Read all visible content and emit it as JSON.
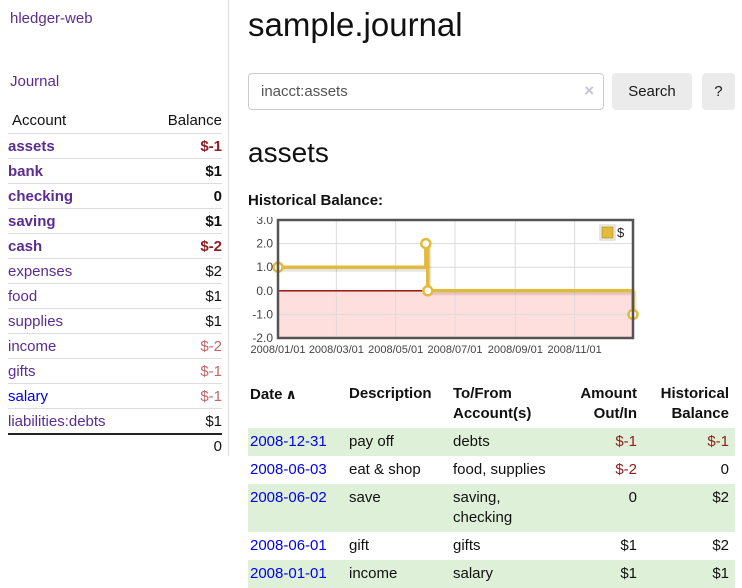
{
  "colors": {
    "purple_link": "#5b2d90",
    "blue_link": "#0000ee",
    "negative_dark": "#8f1d21",
    "negative_muted": "#c46666",
    "row_stripe_green": "#dff0d8",
    "chart_line_gold": "#e2bb3d",
    "chart_negative_fill": "#ffdede",
    "chart_zero_line": "#8b0000",
    "chart_border": "#545454"
  },
  "brand": {
    "title": "hledger-web"
  },
  "nav": {
    "journal": "Journal"
  },
  "sidebar": {
    "header": {
      "account": "Account",
      "balance": "Balance"
    },
    "accounts": [
      {
        "name": "assets",
        "balance": "$-1"
      },
      {
        "name": "bank",
        "balance": "$1"
      },
      {
        "name": "checking",
        "balance": "0"
      },
      {
        "name": "saving",
        "balance": "$1"
      },
      {
        "name": "cash",
        "balance": "$-2"
      },
      {
        "name": "expenses",
        "balance": "$2"
      },
      {
        "name": "food",
        "balance": "$1"
      },
      {
        "name": "supplies",
        "balance": "$1"
      },
      {
        "name": "income",
        "balance": "$-2"
      },
      {
        "name": "gifts",
        "balance": "$-1"
      },
      {
        "name": "salary",
        "balance": "$-1"
      },
      {
        "name": "liabilities:debts",
        "balance": "$1"
      }
    ],
    "total": "0"
  },
  "header": {
    "title": "sample.journal"
  },
  "search": {
    "value": "inacct:assets",
    "clear_icon": "×",
    "search_button": "Search",
    "help_button": "?"
  },
  "account_page": {
    "heading": "assets",
    "chart_title": "Historical Balance:"
  },
  "chart_data": {
    "type": "line",
    "subtype": "step-after",
    "title": "Historical Balance",
    "x_start": "2008-01-01",
    "x_end": "2008-12-31",
    "x_tick_labels": [
      "2008/01/01",
      "2008/03/01",
      "2008/05/01",
      "2008/07/01",
      "2008/09/01",
      "2008/11/01"
    ],
    "x_tick_dates": [
      "2008-01-01",
      "2008-03-01",
      "2008-05-01",
      "2008-07-01",
      "2008-09-01",
      "2008-11-01"
    ],
    "y_ticks": [
      "3.0",
      "2.0",
      "1.0",
      "0.0",
      "-1.0",
      "-2.0"
    ],
    "ylim": [
      -2,
      3
    ],
    "grid": true,
    "legend_position": "top-right",
    "series": [
      {
        "name": "$",
        "color": "#e2bb3d",
        "points": [
          [
            "2008-01-01",
            1
          ],
          [
            "2008-06-01",
            2
          ],
          [
            "2008-06-03",
            0
          ],
          [
            "2008-12-31",
            -1
          ]
        ]
      }
    ]
  },
  "register": {
    "headers": {
      "date": "Date",
      "description": "Description",
      "account": "To/From Account(s)",
      "amount": "Amount Out/In",
      "balance": "Historical Balance"
    },
    "sort_icon": "∧",
    "rows": [
      {
        "date": "2008-12-31",
        "description": "pay off",
        "account": "debts",
        "amount": "$-1",
        "balance": "$-1"
      },
      {
        "date": "2008-06-03",
        "description": "eat & shop",
        "account": "food, supplies",
        "amount": "$-2",
        "balance": "0"
      },
      {
        "date": "2008-06-02",
        "description": "save",
        "account": "saving, checking",
        "amount": "0",
        "balance": "$2"
      },
      {
        "date": "2008-06-01",
        "description": "gift",
        "account": "gifts",
        "amount": "$1",
        "balance": "$2"
      },
      {
        "date": "2008-01-01",
        "description": "income",
        "account": "salary",
        "amount": "$1",
        "balance": "$1"
      }
    ]
  }
}
